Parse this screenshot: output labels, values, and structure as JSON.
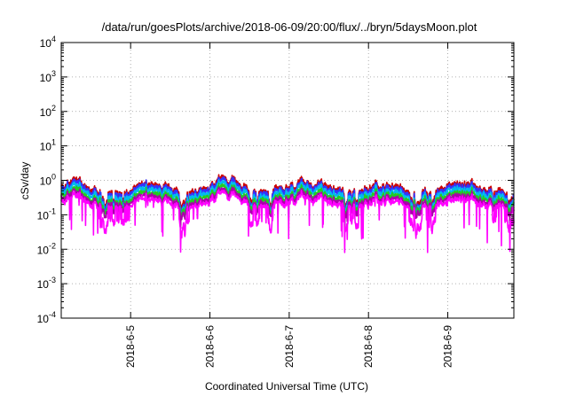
{
  "chart_data": {
    "type": "line",
    "title": "/data/run/goesPlots/archive/2018-06-09/20:00/flux/../bryn/5daysMoon.plot",
    "xlabel": "Coordinated Universal Time (UTC)",
    "ylabel": "cSv/day",
    "yscale": "log",
    "ylim": [
      0.0001,
      10000
    ],
    "xlim": [
      "2018-06-04 03:00",
      "2018-06-09 20:00"
    ],
    "grid": true,
    "x_ticks": [
      "2018-6-5",
      "2018-6-6",
      "2018-6-7",
      "2018-6-8",
      "2018-6-9"
    ],
    "y_ticks": [
      {
        "base": "10",
        "exp": "4"
      },
      {
        "base": "10",
        "exp": "3"
      },
      {
        "base": "10",
        "exp": "2"
      },
      {
        "base": "10",
        "exp": "1"
      },
      {
        "base": "10",
        "exp": "0"
      },
      {
        "base": "10",
        "exp": "-1"
      },
      {
        "base": "10",
        "exp": "-2"
      },
      {
        "base": "10",
        "exp": "-3"
      },
      {
        "base": "10",
        "exp": "-4"
      }
    ],
    "series": [
      {
        "color": "#cc0000",
        "level": 0.6,
        "dipDepth": 0.25
      },
      {
        "color": "#3333ff",
        "level": 0.52,
        "dipDepth": 0.28
      },
      {
        "color": "#00bbee",
        "level": 0.42,
        "dipDepth": 0.25
      },
      {
        "color": "#22cc22",
        "level": 0.33,
        "dipDepth": 0.2
      },
      {
        "color": "#aa00aa",
        "level": 0.27,
        "dipDepth": 0.2
      },
      {
        "color": "#ff00ff",
        "level": 0.22,
        "dipDepth": 0.6
      }
    ]
  }
}
